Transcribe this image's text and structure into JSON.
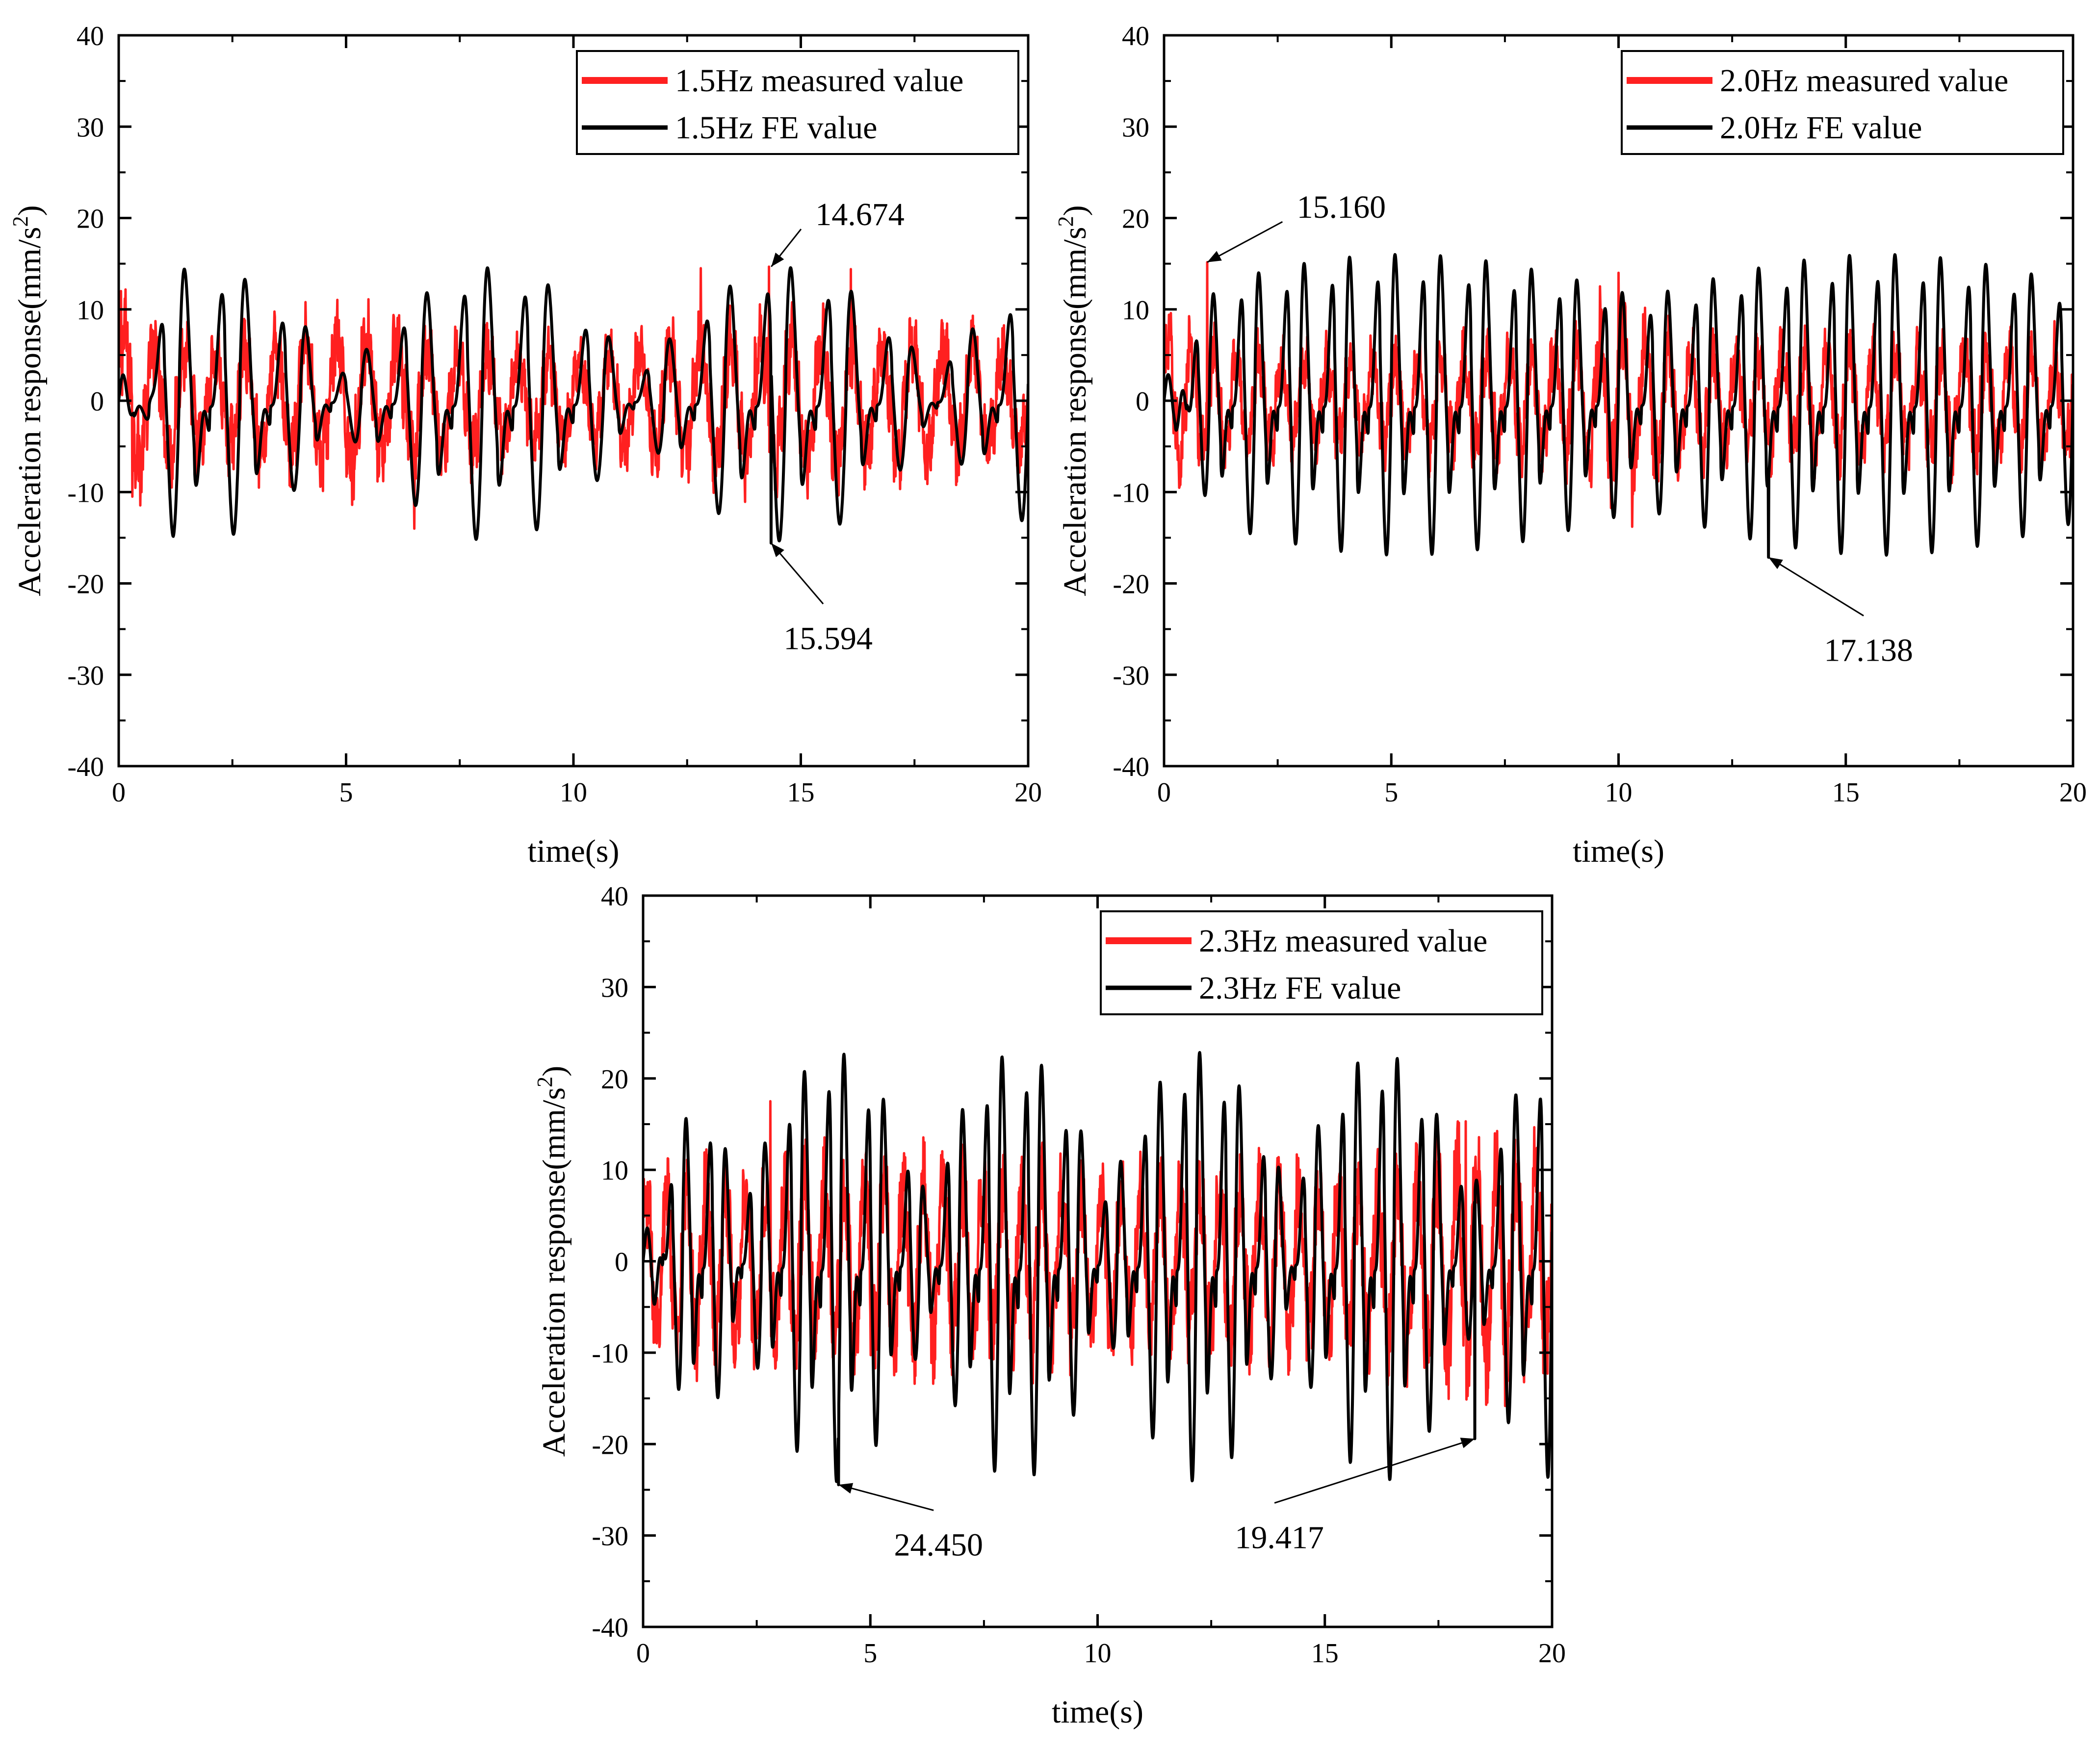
{
  "colors": {
    "measured": "#ff2020",
    "fe": "#000000",
    "axis": "#000000",
    "background": "#ffffff"
  },
  "chart_data": [
    {
      "type": "line",
      "title": "",
      "xlabel": "time(s)",
      "ylabel": "Acceleration response(mm/s",
      "ylabel_sup": "2",
      "ylabel_end": ")",
      "xlim": [
        0,
        20
      ],
      "ylim": [
        -40,
        40
      ],
      "xticks": [
        0,
        5,
        10,
        15,
        20
      ],
      "yticks": [
        -40,
        -30,
        -20,
        -10,
        0,
        10,
        20,
        30,
        40
      ],
      "grid": false,
      "legend_position": "top-right",
      "series": [
        {
          "name": "1.5Hz measured value",
          "color": "#ff2020",
          "signal": {
            "f": 1.5,
            "amp": 5.2,
            "noise": 3.2,
            "env": [
              [
                0,
                1.35
              ],
              [
                2,
                0.9
              ],
              [
                5.5,
                1.3
              ],
              [
                7,
                1.0
              ],
              [
                10,
                0.8
              ],
              [
                13,
                1.15
              ],
              [
                16,
                1.2
              ],
              [
                20,
                1.0
              ]
            ],
            "spikes": [
              [
                0.05,
                12.0
              ],
              [
                0.3,
                -10.5
              ],
              [
                6.5,
                -14.0
              ],
              [
                12.8,
                14.5
              ],
              [
                14.3,
                14.674
              ],
              [
                16.1,
                14.4
              ]
            ]
          }
        },
        {
          "name": "1.5Hz FE value",
          "color": "#000000",
          "signal": {
            "f": 1.5,
            "beat": 0.155,
            "phase": 0.7,
            "min": 3.5,
            "max": 15.594
          }
        }
      ],
      "annotations": [
        {
          "text": "14.674",
          "point": [
            14.35,
            14.674
          ],
          "label": [
            16.3,
            20.4
          ]
        },
        {
          "text": "15.594",
          "point": [
            14.35,
            -15.594
          ],
          "label": [
            15.6,
            -26.0
          ]
        }
      ]
    },
    {
      "type": "line",
      "title": "",
      "xlabel": "time(s)",
      "ylabel": "Acceleration response(mm/s",
      "ylabel_sup": "2",
      "ylabel_end": ")",
      "xlim": [
        0,
        20
      ],
      "ylim": [
        -40,
        40
      ],
      "xticks": [
        0,
        5,
        10,
        15,
        20
      ],
      "yticks": [
        -40,
        -30,
        -20,
        -10,
        0,
        10,
        20,
        30,
        40
      ],
      "grid": false,
      "legend_position": "top-right",
      "series": [
        {
          "name": "2.0Hz measured value",
          "color": "#ff2020",
          "signal": {
            "f": 2.0,
            "amp": 5.0,
            "noise": 2.8,
            "env": [
              [
                0,
                1.3
              ],
              [
                1.5,
                0.9
              ],
              [
                5,
                0.85
              ],
              [
                8.5,
                1.0
              ],
              [
                10,
                1.6
              ],
              [
                11.3,
                1.0
              ],
              [
                14,
                0.95
              ],
              [
                20,
                1.0
              ]
            ],
            "spikes": [
              [
                0.95,
                15.16
              ],
              [
                10.0,
                14.0
              ],
              [
                10.3,
                -13.8
              ]
            ]
          }
        },
        {
          "name": "2.0Hz FE value",
          "color": "#000000",
          "signal": {
            "f": 2.0,
            "beat": 0.095,
            "phase": 0.0,
            "min": 12.0,
            "max": 17.138
          }
        }
      ],
      "annotations": [
        {
          "text": "15.160",
          "point": [
            0.95,
            15.16
          ],
          "label": [
            3.9,
            21.2
          ]
        },
        {
          "text": "17.138",
          "point": [
            13.3,
            -17.138
          ],
          "label": [
            15.5,
            -27.3
          ]
        }
      ]
    },
    {
      "type": "line",
      "title": "",
      "xlabel": "time(s)",
      "ylabel": "Acceleration response(mm/s",
      "ylabel_sup": "2",
      "ylabel_end": ")",
      "xlim": [
        0,
        20
      ],
      "ylim": [
        -40,
        40
      ],
      "xticks": [
        0,
        5,
        10,
        15,
        20
      ],
      "yticks": [
        -40,
        -30,
        -20,
        -10,
        0,
        10,
        20,
        30,
        40
      ],
      "grid": false,
      "legend_position": "top-right",
      "series": [
        {
          "name": "2.3Hz measured value",
          "color": "#ff2020",
          "signal": {
            "f": 2.3,
            "amp": 7.2,
            "noise": 4.2,
            "env": [
              [
                0,
                0.9
              ],
              [
                1,
                1.1
              ],
              [
                5,
                1.2
              ],
              [
                10,
                1.0
              ],
              [
                16,
                1.1
              ],
              [
                18,
                1.45
              ],
              [
                20,
                1.3
              ]
            ],
            "spikes": [
              [
                2.8,
                17.5
              ],
              [
                18.1,
                15.3
              ]
            ]
          }
        },
        {
          "name": "2.3Hz FE value",
          "color": "#000000",
          "signal": {
            "f": 2.3,
            "beat": 0.25,
            "phase": 1.4,
            "min": 8.0,
            "max": 24.45
          }
        }
      ],
      "annotations": [
        {
          "text": "24.450",
          "point": [
            4.3,
            -24.45
          ],
          "label": [
            6.5,
            -31.0
          ]
        },
        {
          "text": "19.417",
          "point": [
            18.3,
            -19.417
          ],
          "label": [
            14.0,
            -30.2
          ]
        }
      ]
    }
  ]
}
